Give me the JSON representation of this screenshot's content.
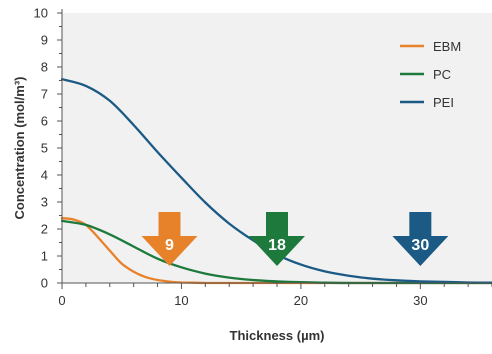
{
  "chart_data": {
    "type": "line",
    "xlabel": "Thickness (µm)",
    "ylabel": "Concentration (mol/m³)",
    "xlim": [
      0,
      36
    ],
    "ylim": [
      0,
      10
    ],
    "x_ticks": [
      0,
      10,
      20,
      30
    ],
    "y_ticks": [
      0,
      1,
      2,
      3,
      4,
      5,
      6,
      7,
      8,
      9,
      10
    ],
    "grid": false,
    "plot_background": "#f1f1f1",
    "legend_position": "top-right",
    "series": [
      {
        "name": "EBM",
        "color": "#e8822a",
        "x": [
          0,
          1,
          2,
          3,
          4,
          5,
          6,
          7,
          8,
          9,
          10,
          11,
          12,
          14,
          16,
          18,
          20,
          25,
          30,
          36
        ],
        "y": [
          2.4,
          2.35,
          2.15,
          1.7,
          1.2,
          0.72,
          0.42,
          0.22,
          0.11,
          0.05,
          0.02,
          0.01,
          0.0,
          0.0,
          0.0,
          0.0,
          0.0,
          0.0,
          0.0,
          0.0
        ]
      },
      {
        "name": "PC",
        "color": "#1d7a3c",
        "x": [
          0,
          2,
          4,
          6,
          8,
          10,
          12,
          14,
          16,
          18,
          20,
          22,
          25,
          30,
          36
        ],
        "y": [
          2.3,
          2.15,
          1.8,
          1.35,
          0.9,
          0.58,
          0.35,
          0.2,
          0.11,
          0.06,
          0.03,
          0.01,
          0.0,
          0.0,
          0.0
        ]
      },
      {
        "name": "PEI",
        "color": "#1a5a84",
        "x": [
          0,
          2,
          4,
          6,
          8,
          10,
          12,
          14,
          16,
          18,
          20,
          22,
          24,
          26,
          28,
          30,
          32,
          34,
          36
        ],
        "y": [
          7.55,
          7.3,
          6.75,
          5.85,
          4.85,
          3.9,
          2.98,
          2.2,
          1.58,
          1.05,
          0.68,
          0.43,
          0.27,
          0.16,
          0.1,
          0.06,
          0.04,
          0.02,
          0.01
        ]
      }
    ],
    "annotations": [
      {
        "label": "9",
        "x": 9,
        "color": "#e8822a"
      },
      {
        "label": "18",
        "x": 18,
        "color": "#1d7a3c"
      },
      {
        "label": "30",
        "x": 30,
        "color": "#1a5a84"
      }
    ]
  }
}
